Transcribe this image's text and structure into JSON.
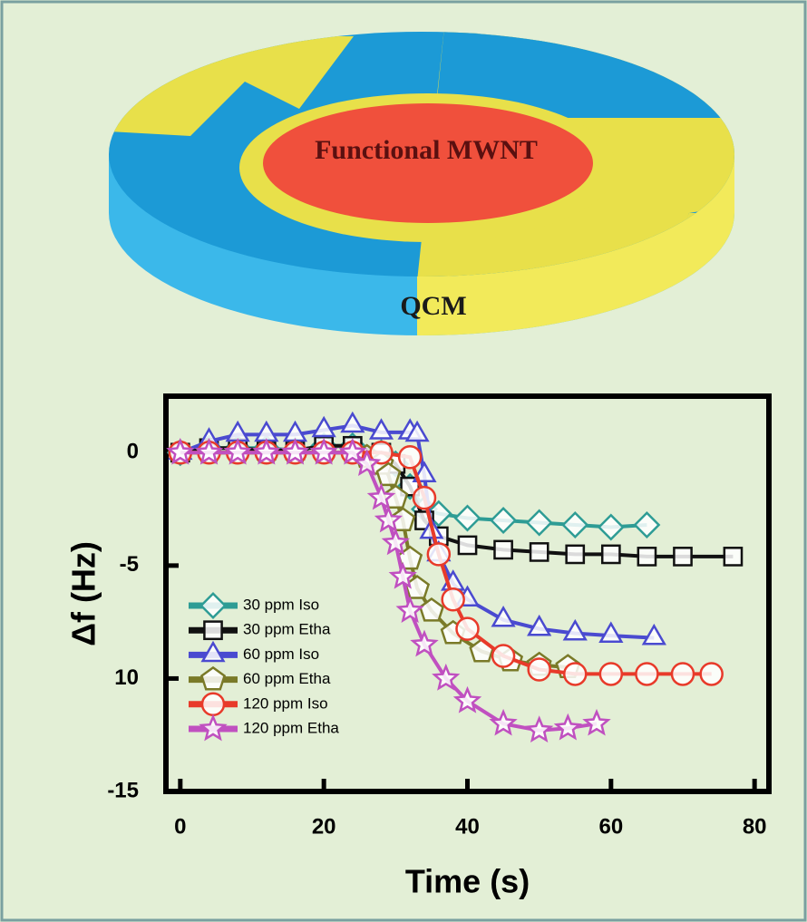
{
  "diagram": {
    "labels": [
      "Functional MWNT",
      "QCM"
    ]
  },
  "chart_data": {
    "type": "line",
    "xlabel": "Time (s)",
    "ylabel": "Δf (Hz)",
    "xlim": [
      -2,
      82
    ],
    "ylim": [
      -15,
      2.5
    ],
    "xticks": [
      0,
      20,
      40,
      60,
      80
    ],
    "yticks": [
      0,
      -5,
      {
        "value": -10,
        "label": "10"
      },
      -15
    ],
    "series": [
      {
        "name": "30 ppm Iso",
        "color": "#2e9c95",
        "marker": "diamond",
        "x": [
          0,
          4,
          8,
          12,
          16,
          20,
          24,
          28,
          30,
          32,
          34,
          36,
          40,
          45,
          50,
          55,
          60,
          65
        ],
        "values": [
          0,
          0.2,
          0.2,
          0.2,
          0.1,
          0.3,
          0.3,
          0,
          -0.5,
          -1.5,
          -2.5,
          -2.7,
          -2.9,
          -3.0,
          -3.1,
          -3.2,
          -3.3,
          -3.2
        ]
      },
      {
        "name": "30 ppm Etha",
        "color": "#111111",
        "marker": "square",
        "x": [
          0,
          4,
          8,
          12,
          16,
          20,
          24,
          28,
          30,
          32,
          34,
          36,
          40,
          45,
          50,
          55,
          60,
          65,
          70,
          77
        ],
        "values": [
          0,
          0.2,
          0.2,
          0.1,
          0.1,
          0.3,
          0.3,
          0,
          -0.5,
          -1.5,
          -3.0,
          -3.7,
          -4.1,
          -4.3,
          -4.4,
          -4.5,
          -4.5,
          -4.6,
          -4.6,
          -4.6
        ]
      },
      {
        "name": "60 ppm Iso",
        "color": "#4a4ad0",
        "marker": "triangle",
        "x": [
          0,
          4,
          8,
          12,
          16,
          20,
          24,
          28,
          32,
          33,
          34,
          35,
          36,
          38,
          40,
          45,
          50,
          55,
          60,
          66
        ],
        "values": [
          0,
          0.5,
          0.8,
          0.8,
          0.8,
          1,
          1.2,
          0.9,
          0.9,
          0.8,
          -1,
          -3.5,
          -4.5,
          -5.8,
          -6.5,
          -7.4,
          -7.8,
          -8.0,
          -8.1,
          -8.2
        ]
      },
      {
        "name": "60 ppm Etha",
        "color": "#7a7a28",
        "marker": "pentagon",
        "x": [
          0,
          4,
          8,
          12,
          16,
          20,
          24,
          26,
          28,
          29,
          30,
          31,
          32,
          33,
          35,
          38,
          42,
          46,
          50,
          54
        ],
        "values": [
          0,
          0,
          0,
          0,
          0,
          0,
          0,
          -0.2,
          -0.5,
          -1,
          -2,
          -3,
          -4.7,
          -6,
          -7,
          -8,
          -8.8,
          -9.2,
          -9.4,
          -9.5
        ]
      },
      {
        "name": "120 ppm Iso",
        "color": "#e83a2a",
        "marker": "circle",
        "x": [
          0,
          4,
          8,
          12,
          16,
          20,
          24,
          28,
          32,
          34,
          36,
          38,
          40,
          45,
          50,
          55,
          60,
          65,
          70,
          74
        ],
        "values": [
          0,
          0,
          0,
          0,
          0,
          0,
          0,
          0,
          -0.2,
          -2,
          -4.5,
          -6.5,
          -7.8,
          -9,
          -9.6,
          -9.8,
          -9.8,
          -9.8,
          -9.8,
          -9.8
        ]
      },
      {
        "name": "120 ppm Etha",
        "color": "#c050c0",
        "marker": "star",
        "x": [
          0,
          4,
          8,
          12,
          16,
          20,
          24,
          26,
          28,
          29,
          30,
          31,
          32,
          34,
          37,
          40,
          45,
          50,
          54,
          58
        ],
        "values": [
          0,
          0,
          0,
          0,
          0,
          0,
          0,
          -0.5,
          -2,
          -3,
          -4,
          -5.5,
          -7,
          -8.5,
          -10,
          -11,
          -12,
          -12.3,
          -12.2,
          -12
        ]
      }
    ]
  }
}
